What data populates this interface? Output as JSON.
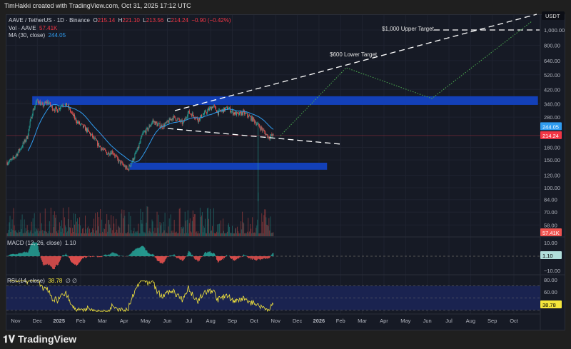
{
  "header": {
    "credit": "TimHakki created with TradingView.com, Oct 31, 2025 17:12 UTC"
  },
  "legend": {
    "symbol": "AAVE / TetherUS · 1D · Binance",
    "o_label": "O",
    "open": "215.14",
    "h_label": "H",
    "high": "221.10",
    "l_label": "L",
    "low": "213.56",
    "c_label": "C",
    "close": "214.24",
    "change": "−0.90 (−0.42%)",
    "vol_label": "Vol · AAVE",
    "vol": "57.41K",
    "ma_label": "MA (30, close)",
    "ma": "244.05",
    "macd_label": "MACD (12, 26, close)",
    "macd": "1.10",
    "rsi_label": "RSI (14, close)",
    "rsi": "38.78",
    "rsi_extra": "∅ ∅"
  },
  "colors": {
    "up": "#26a69a",
    "down": "#ef5350",
    "zone": "#1340b8",
    "ma": "#2f9cf0",
    "rsi": "#f5e63c",
    "target_path": "#4caf50"
  },
  "currency": "USDT",
  "logo": "TradingView",
  "chart_data": {
    "type": "candlestick",
    "scale": "log",
    "ylim": [
      50,
      1150
    ],
    "price_ticks": [
      "1,000.00",
      "800.00",
      "640.00",
      "520.00",
      "420.00",
      "340.00",
      "280.00",
      "180.00",
      "150.00",
      "120.00",
      "100.00",
      "84.00",
      "70.00",
      "58.00"
    ],
    "price_tick_values": [
      1000,
      800,
      640,
      520,
      420,
      340,
      280,
      180,
      150,
      120,
      100,
      84,
      70,
      58
    ],
    "x_ticks": [
      "Nov",
      "Dec",
      "2025",
      "Feb",
      "Mar",
      "Apr",
      "May",
      "Jun",
      "Jul",
      "Aug",
      "Sep",
      "Oct",
      "Nov",
      "Dec",
      "2026",
      "Feb",
      "Mar",
      "Apr",
      "May",
      "Jun",
      "Jul",
      "Aug",
      "Sep",
      "Oct"
    ],
    "start_date": "2024-10-21",
    "weekly_close": [
      145,
      150,
      165,
      185,
      210,
      300,
      360,
      330,
      350,
      320,
      310,
      340,
      330,
      290,
      260,
      245,
      230,
      210,
      190,
      175,
      165,
      170,
      150,
      140,
      130,
      150,
      175,
      220,
      235,
      265,
      250,
      245,
      260,
      280,
      270,
      255,
      300,
      290,
      270,
      290,
      310,
      330,
      300,
      310,
      320,
      300,
      290,
      300,
      285,
      270,
      250,
      230,
      210,
      214.24
    ],
    "last_labels": {
      "ma": "244.05",
      "close": "214.24",
      "volume": "57.41K",
      "macd": "1.10",
      "rsi": "38.78"
    },
    "zones": [
      {
        "from": 335,
        "to": 380,
        "start": "2024-11-25",
        "end": "2026-10-31"
      },
      {
        "from": 130,
        "to": 144,
        "start": "2025-04-10",
        "end": "2026-01-10"
      }
    ],
    "annotations": [
      {
        "text": "$1,000 Upper Target",
        "price": 1000
      },
      {
        "text": "$600 Lower Target",
        "price": 600
      }
    ],
    "macd_ticks": [
      "10.00",
      "−10.00"
    ],
    "rsi_ticks": [
      "80.00",
      "60.00"
    ],
    "rsi_bands": [
      70,
      50,
      30
    ]
  }
}
